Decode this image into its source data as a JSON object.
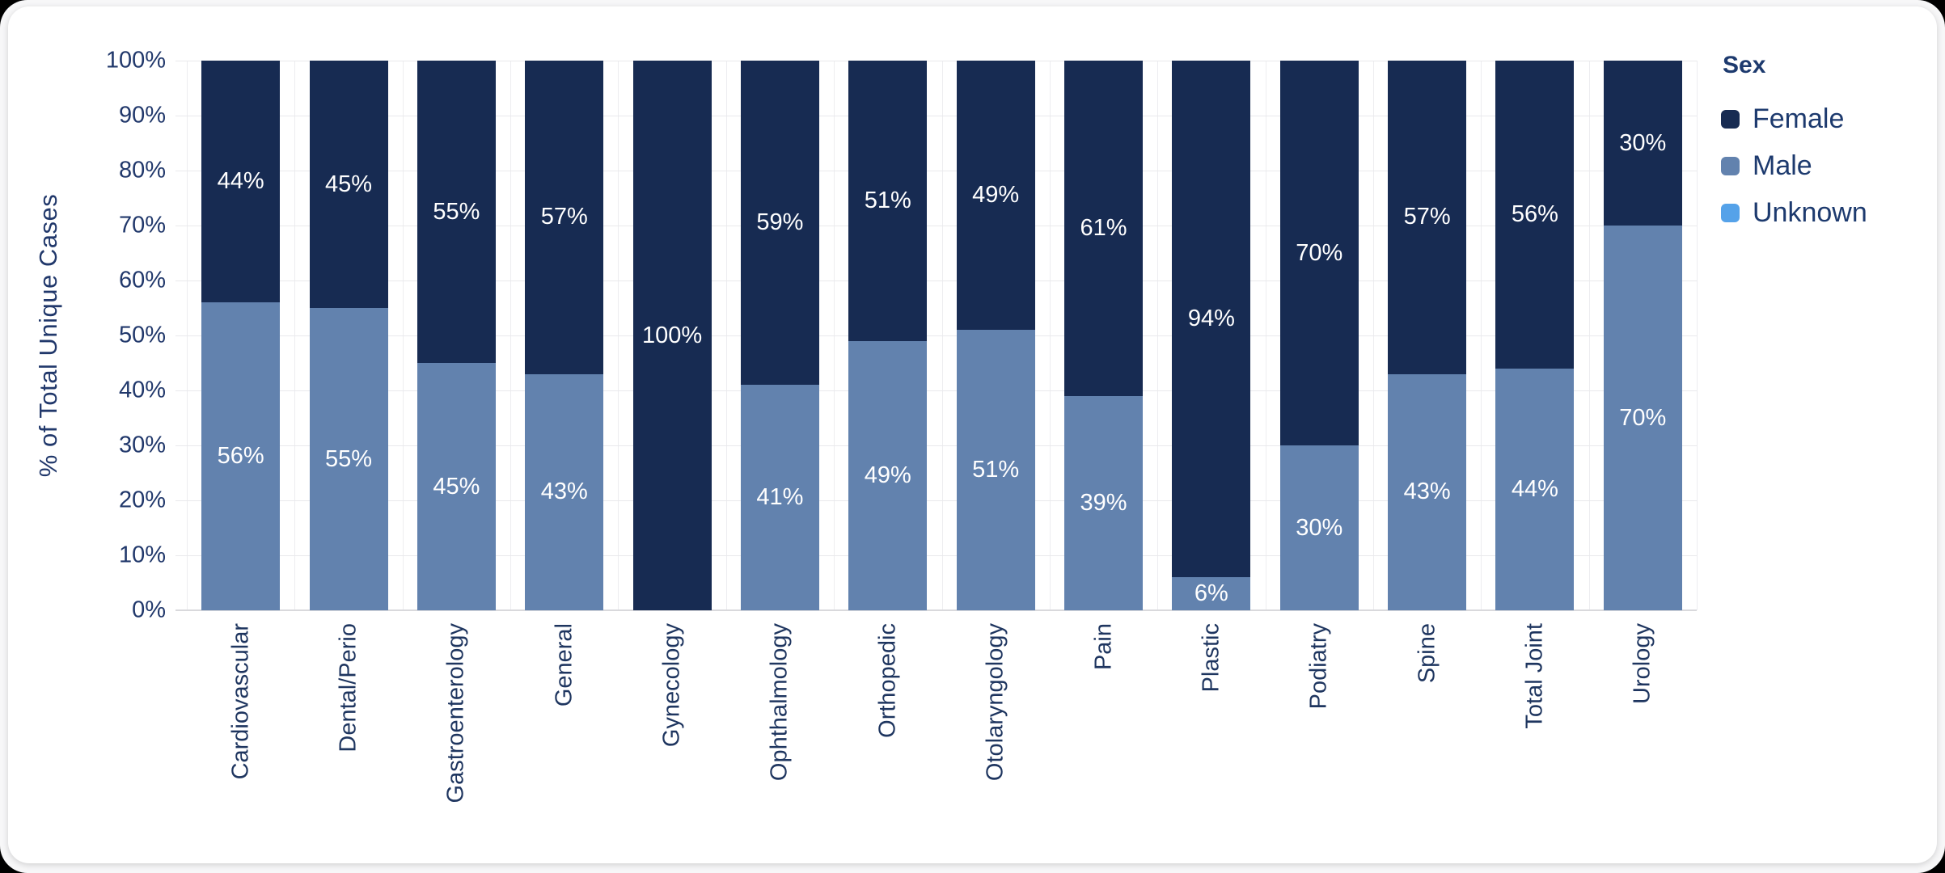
{
  "page": {
    "outer_background": "#f7f7f8",
    "card_background": "#ffffff",
    "corner_background": "#000000",
    "text_color": "#21386b"
  },
  "chart_data": {
    "type": "bar",
    "stacked": true,
    "orientation": "vertical",
    "title": "",
    "xlabel": "",
    "ylabel": "% of Total Unique Cases",
    "ylim": [
      0,
      100
    ],
    "yticks": [
      "0%",
      "10%",
      "20%",
      "30%",
      "40%",
      "50%",
      "60%",
      "70%",
      "80%",
      "90%",
      "100%"
    ],
    "grid": true,
    "value_suffix": "%",
    "legend_title": "Sex",
    "legend_position": "right",
    "categories": [
      "Cardiovascular",
      "Dental/Perio",
      "Gastroenterology",
      "General",
      "Gynecology",
      "Ophthalmology",
      "Orthopedic",
      "Otolaryngology",
      "Pain",
      "Plastic",
      "Podiatry",
      "Spine",
      "Total Joint",
      "Urology"
    ],
    "series": [
      {
        "name": "Female",
        "color": "#172b52",
        "values": [
          44,
          45,
          55,
          57,
          100,
          59,
          51,
          49,
          61,
          94,
          70,
          57,
          56,
          30
        ]
      },
      {
        "name": "Male",
        "color": "#6282ae",
        "values": [
          56,
          55,
          45,
          43,
          0,
          41,
          49,
          51,
          39,
          6,
          30,
          43,
          44,
          70
        ]
      },
      {
        "name": "Unknown",
        "color": "#55a2e9",
        "values": [
          0,
          0,
          0,
          0,
          0,
          0,
          0,
          0,
          0,
          0,
          0,
          0,
          0,
          0
        ]
      }
    ]
  }
}
